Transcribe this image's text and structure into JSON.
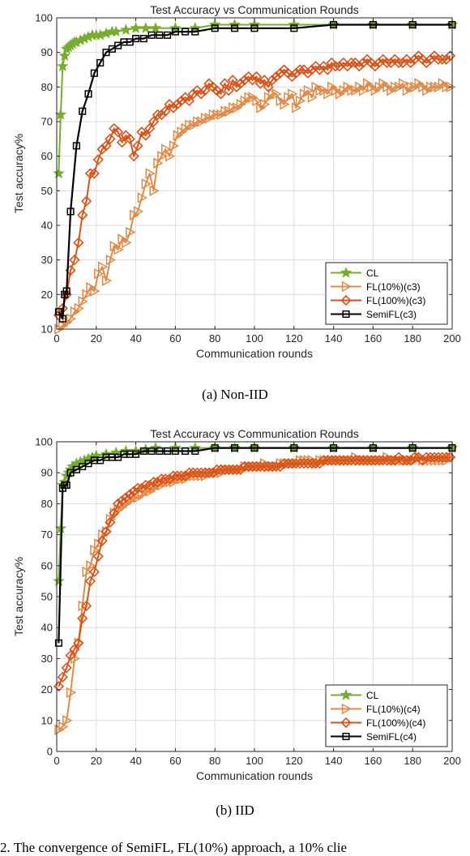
{
  "captions": {
    "a": "(a)  Non-IID",
    "b": "(b)  IID"
  },
  "footer_text": "2. The convergence of SemiFL, FL(10%) approach, a 10% clie",
  "colors": {
    "cl": "#77ac30",
    "fl10": "#e08a48",
    "fl100": "#d95319",
    "semi": "#000000"
  },
  "chart_data": [
    {
      "type": "line",
      "title": "Test Accuracy vs Communication Rounds",
      "xlabel": "Communication rounds",
      "ylabel": "Test accuracy%",
      "xlim": [
        0,
        200
      ],
      "ylim": [
        10,
        100
      ],
      "xticks": [
        0,
        20,
        40,
        60,
        80,
        100,
        120,
        140,
        160,
        180,
        200
      ],
      "yticks": [
        10,
        20,
        30,
        40,
        50,
        60,
        70,
        80,
        90,
        100
      ],
      "grid": true,
      "legend_position": "bottom-right",
      "series": [
        {
          "name": "CL",
          "marker": "star",
          "x": [
            1,
            2,
            3,
            4,
            5,
            6,
            7,
            8,
            9,
            10,
            12,
            14,
            16,
            18,
            20,
            22,
            25,
            28,
            30,
            35,
            40,
            45,
            50,
            60,
            70,
            80,
            90,
            100,
            120,
            140,
            160,
            180,
            200
          ],
          "y": [
            55,
            72,
            86,
            89,
            91,
            91.5,
            92,
            92.5,
            93,
            93,
            93.5,
            94,
            94.5,
            95,
            95,
            95,
            95.5,
            96,
            96,
            96.5,
            97,
            97,
            97,
            97,
            97,
            98,
            98,
            98,
            98,
            98,
            98,
            98,
            98
          ]
        },
        {
          "name": "FL(10%)(c3)",
          "marker": "triangle-right",
          "x": [
            1,
            3,
            5,
            7,
            9,
            11,
            13,
            15,
            17,
            19,
            21,
            23,
            25,
            27,
            29,
            31,
            33,
            35,
            37,
            39,
            41,
            43,
            45,
            47,
            49,
            51,
            53,
            55,
            57,
            59,
            61,
            63,
            65,
            67,
            69,
            71,
            73,
            75,
            77,
            79,
            81,
            83,
            85,
            87,
            89,
            91,
            93,
            95,
            97,
            99,
            101,
            103,
            105,
            107,
            109,
            111,
            113,
            115,
            117,
            119,
            121,
            123,
            125,
            127,
            129,
            131,
            133,
            135,
            137,
            139,
            141,
            143,
            145,
            147,
            149,
            151,
            153,
            155,
            157,
            159,
            161,
            163,
            165,
            167,
            169,
            171,
            173,
            175,
            177,
            179,
            181,
            183,
            185,
            187,
            189,
            191,
            193,
            195,
            197,
            199
          ],
          "y": [
            10,
            11,
            12,
            13,
            15,
            16,
            18,
            20,
            22,
            21,
            26,
            28,
            24,
            30,
            34,
            33,
            36,
            35,
            38,
            43,
            44,
            48,
            52,
            55,
            50,
            58,
            60,
            62,
            60,
            63,
            66,
            67,
            68,
            69,
            69,
            70,
            70,
            71,
            71,
            72,
            72,
            72,
            73,
            73,
            74,
            74,
            75,
            76,
            77,
            77,
            76,
            74,
            75,
            77,
            78,
            78,
            76,
            75,
            77,
            78,
            74,
            76,
            78,
            79,
            77,
            80,
            79,
            79,
            78,
            80,
            79,
            78,
            79,
            80,
            79,
            79,
            80,
            79,
            81,
            80,
            79,
            80,
            81,
            80,
            79,
            80,
            80,
            81,
            79,
            80,
            80,
            81,
            80,
            79,
            80,
            80,
            80,
            81,
            80,
            80
          ]
        },
        {
          "name": "FL(100%)(c3)",
          "marker": "diamond",
          "x": [
            1,
            3,
            5,
            7,
            9,
            11,
            13,
            15,
            17,
            19,
            21,
            23,
            25,
            27,
            29,
            31,
            33,
            35,
            37,
            39,
            41,
            43,
            45,
            47,
            49,
            51,
            53,
            55,
            57,
            59,
            61,
            63,
            65,
            67,
            69,
            71,
            73,
            75,
            77,
            79,
            81,
            83,
            85,
            87,
            89,
            91,
            93,
            95,
            97,
            99,
            101,
            103,
            105,
            107,
            109,
            111,
            113,
            115,
            117,
            119,
            121,
            123,
            125,
            127,
            129,
            131,
            133,
            135,
            137,
            139,
            141,
            143,
            145,
            147,
            149,
            151,
            153,
            155,
            157,
            159,
            161,
            163,
            165,
            167,
            169,
            171,
            173,
            175,
            177,
            179,
            181,
            183,
            185,
            187,
            189,
            191,
            193,
            195,
            197,
            199
          ],
          "y": [
            14,
            16,
            20,
            27,
            30,
            35,
            43,
            47,
            55,
            55,
            59,
            62,
            63,
            65,
            68,
            67,
            64,
            66,
            65,
            60,
            63,
            67,
            66,
            68,
            70,
            72,
            72,
            73,
            75,
            74,
            75,
            76,
            77,
            76,
            78,
            79,
            78,
            79,
            81,
            80,
            79,
            78,
            81,
            79,
            82,
            80,
            81,
            82,
            83,
            82,
            83,
            81,
            82,
            80,
            82,
            83,
            84,
            85,
            84,
            83,
            84,
            85,
            85,
            84,
            85,
            86,
            85,
            86,
            85,
            87,
            86,
            86,
            87,
            86,
            87,
            87,
            86,
            87,
            88,
            87,
            86,
            87,
            88,
            87,
            87,
            88,
            87,
            87,
            88,
            87,
            88,
            89,
            88,
            87,
            88,
            89,
            88,
            88,
            88,
            89
          ]
        },
        {
          "name": "SemiFL(c3)",
          "marker": "square",
          "x": [
            1,
            3,
            4,
            5,
            7,
            10,
            13,
            16,
            19,
            22,
            25,
            28,
            31,
            34,
            37,
            40,
            44,
            48,
            52,
            56,
            60,
            65,
            70,
            80,
            90,
            100,
            120,
            140,
            160,
            180,
            200
          ],
          "y": [
            15,
            13,
            20,
            21,
            44,
            63,
            73,
            78,
            84,
            87,
            90,
            91,
            92,
            93,
            93,
            94,
            94,
            95,
            95,
            95,
            96,
            96,
            96,
            97,
            97,
            97,
            97,
            98,
            98,
            98,
            98
          ]
        }
      ]
    },
    {
      "type": "line",
      "title": "Test Accuracy vs Communication Rounds",
      "xlabel": "Communication rounds",
      "ylabel": "Test accuracy%",
      "xlim": [
        0,
        200
      ],
      "ylim": [
        0,
        100
      ],
      "xticks": [
        0,
        20,
        40,
        60,
        80,
        100,
        120,
        140,
        160,
        180,
        200
      ],
      "yticks": [
        0,
        10,
        20,
        30,
        40,
        50,
        60,
        70,
        80,
        90,
        100
      ],
      "grid": true,
      "legend_position": "bottom-right",
      "series": [
        {
          "name": "CL",
          "marker": "star",
          "x": [
            1,
            2,
            3,
            4,
            5,
            6,
            7,
            8,
            10,
            12,
            14,
            16,
            18,
            20,
            25,
            30,
            35,
            40,
            45,
            50,
            60,
            70,
            80,
            90,
            100,
            120,
            140,
            160,
            180,
            200
          ],
          "y": [
            55,
            72,
            86,
            87,
            89,
            90,
            91,
            92,
            93,
            93.5,
            94,
            94.5,
            95,
            95.5,
            96,
            96.5,
            97,
            97,
            97.5,
            98,
            98,
            98,
            98,
            98,
            98,
            98,
            98,
            98,
            98,
            98
          ]
        },
        {
          "name": "FL(10%)(c4)",
          "marker": "triangle-right",
          "x": [
            1,
            3,
            5,
            7,
            9,
            11,
            13,
            15,
            17,
            19,
            21,
            23,
            25,
            27,
            29,
            31,
            33,
            35,
            37,
            39,
            41,
            43,
            45,
            47,
            49,
            51,
            53,
            55,
            57,
            59,
            61,
            63,
            65,
            67,
            69,
            71,
            73,
            75,
            77,
            79,
            81,
            83,
            85,
            87,
            89,
            91,
            93,
            95,
            97,
            99,
            101,
            103,
            105,
            107,
            109,
            111,
            113,
            115,
            117,
            119,
            121,
            123,
            125,
            127,
            129,
            131,
            133,
            135,
            137,
            139,
            141,
            143,
            145,
            147,
            149,
            151,
            153,
            155,
            157,
            159,
            161,
            163,
            165,
            167,
            169,
            171,
            173,
            175,
            177,
            179,
            181,
            183,
            185,
            187,
            189,
            191,
            193,
            195,
            197,
            199
          ],
          "y": [
            7,
            8,
            10,
            19,
            30,
            35,
            47,
            58,
            60,
            65,
            67,
            70,
            71,
            75,
            77,
            78,
            79,
            80,
            81,
            82,
            82,
            83,
            84,
            84,
            85,
            86,
            86,
            87,
            87,
            87,
            88,
            88,
            88,
            89,
            89,
            89,
            89,
            89,
            90,
            90,
            90,
            90,
            91,
            91,
            91,
            91,
            91,
            92,
            92,
            92,
            92,
            92,
            93,
            92,
            92,
            92,
            93,
            93,
            93,
            93,
            93,
            94,
            94,
            94,
            94,
            93,
            94,
            94,
            94,
            94,
            94,
            94,
            94,
            94,
            94,
            95,
            94,
            94,
            94,
            94,
            94,
            94,
            94,
            95,
            94,
            94,
            94,
            94,
            94,
            94,
            94,
            95,
            94,
            94,
            94,
            94,
            94,
            94,
            94,
            95
          ]
        },
        {
          "name": "FL(100%)(c4)",
          "marker": "diamond",
          "x": [
            1,
            3,
            5,
            7,
            9,
            11,
            13,
            15,
            17,
            19,
            21,
            23,
            25,
            27,
            29,
            31,
            33,
            35,
            37,
            39,
            41,
            43,
            45,
            47,
            49,
            51,
            53,
            55,
            57,
            59,
            61,
            63,
            65,
            67,
            69,
            71,
            73,
            75,
            77,
            79,
            81,
            83,
            85,
            87,
            89,
            91,
            93,
            95,
            97,
            99,
            101,
            103,
            105,
            107,
            109,
            111,
            113,
            115,
            117,
            119,
            121,
            123,
            125,
            127,
            129,
            131,
            133,
            135,
            137,
            139,
            141,
            143,
            145,
            147,
            149,
            151,
            153,
            155,
            157,
            159,
            161,
            163,
            165,
            167,
            169,
            171,
            173,
            175,
            177,
            179,
            181,
            183,
            185,
            187,
            189,
            191,
            193,
            195,
            197,
            199
          ],
          "y": [
            21,
            24,
            27,
            31,
            33,
            35,
            43,
            47,
            55,
            58,
            63,
            68,
            71,
            74,
            77,
            80,
            81,
            82,
            83,
            84,
            85,
            85,
            86,
            86,
            87,
            87,
            88,
            88,
            88,
            89,
            89,
            89,
            89,
            90,
            90,
            90,
            90,
            90,
            90,
            90,
            91,
            91,
            91,
            91,
            91,
            91,
            91,
            92,
            92,
            92,
            92,
            92,
            92,
            92,
            92,
            92,
            92,
            93,
            93,
            93,
            93,
            93,
            93,
            93,
            93,
            93,
            93,
            94,
            94,
            94,
            94,
            94,
            94,
            94,
            94,
            94,
            94,
            94,
            94,
            94,
            94,
            94,
            94,
            94,
            94,
            94,
            95,
            94,
            94,
            94,
            95,
            95,
            94,
            95,
            95,
            95,
            95,
            95,
            95,
            95
          ]
        },
        {
          "name": "SemiFL(c4)",
          "marker": "square",
          "x": [
            1,
            3,
            4,
            5,
            7,
            10,
            13,
            16,
            19,
            22,
            25,
            28,
            31,
            34,
            37,
            40,
            44,
            48,
            52,
            56,
            60,
            65,
            70,
            80,
            90,
            100,
            120,
            140,
            160,
            180,
            200
          ],
          "y": [
            35,
            85,
            86,
            86,
            90,
            91,
            92,
            93,
            94,
            94,
            95,
            95,
            95,
            96,
            96,
            96,
            97,
            97,
            97,
            97,
            97,
            97,
            97,
            98,
            98,
            98,
            98,
            98,
            98,
            98,
            98
          ]
        }
      ]
    }
  ]
}
